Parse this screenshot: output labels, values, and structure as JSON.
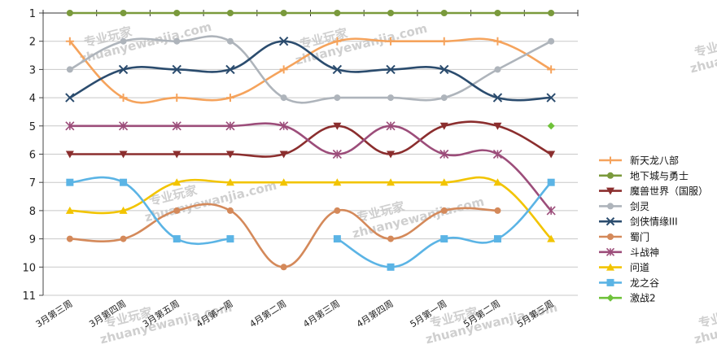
{
  "chart_data": {
    "type": "line",
    "categories": [
      "3月第三周",
      "3月第四周",
      "3月第五周",
      "4月第一周",
      "4月第二周",
      "4月第三周",
      "4月第四周",
      "5月第一周",
      "5月第二周",
      "5月第三周"
    ],
    "ylim": [
      11,
      1
    ],
    "yticks": [
      1,
      2,
      3,
      4,
      5,
      6,
      7,
      8,
      9,
      10,
      11
    ],
    "ylabel_reversed": true,
    "grid": true,
    "legend_position": "right",
    "series": [
      {
        "name": "新天龙八部",
        "color": "#f5a35c",
        "marker": "plus",
        "values": [
          2,
          4,
          4,
          4,
          3,
          2,
          2,
          2,
          2,
          3
        ]
      },
      {
        "name": "地下城与勇士",
        "color": "#7a9a3c",
        "marker": "circle",
        "values": [
          1,
          1,
          1,
          1,
          1,
          1,
          1,
          1,
          1,
          1
        ]
      },
      {
        "name": "魔兽世界（国服）",
        "color": "#8b2e2e",
        "marker": "triangle-down",
        "values": [
          6,
          6,
          6,
          6,
          6,
          5,
          6,
          5,
          5,
          6
        ]
      },
      {
        "name": "剑灵",
        "color": "#aeb4bb",
        "marker": "circle",
        "values": [
          3,
          2,
          2,
          2,
          4,
          4,
          4,
          4,
          3,
          2
        ]
      },
      {
        "name": "剑侠情缘III",
        "color": "#2b4c6e",
        "marker": "x",
        "values": [
          4,
          3,
          3,
          3,
          2,
          3,
          3,
          3,
          4,
          4
        ]
      },
      {
        "name": "蜀门",
        "color": "#d4895a",
        "marker": "circle",
        "values": [
          9,
          9,
          8,
          8,
          10,
          8,
          9,
          8,
          8,
          null
        ]
      },
      {
        "name": "斗战神",
        "color": "#9c4d7a",
        "marker": "star",
        "values": [
          5,
          5,
          5,
          5,
          5,
          6,
          5,
          6,
          6,
          8
        ]
      },
      {
        "name": "问道",
        "color": "#f2c400",
        "marker": "triangle-up",
        "values": [
          8,
          8,
          7,
          7,
          7,
          7,
          7,
          7,
          7,
          9
        ]
      },
      {
        "name": "龙之谷",
        "color": "#5bb4e5",
        "marker": "square",
        "values": [
          7,
          7,
          9,
          9,
          null,
          9,
          10,
          9,
          9,
          7
        ]
      },
      {
        "name": "激战2",
        "color": "#6fc23a",
        "marker": "diamond",
        "values": [
          null,
          null,
          null,
          null,
          null,
          null,
          null,
          null,
          null,
          5
        ]
      }
    ]
  },
  "watermark": {
    "line1": "专业玩家",
    "line2": "zhuanyewanjia.com"
  }
}
